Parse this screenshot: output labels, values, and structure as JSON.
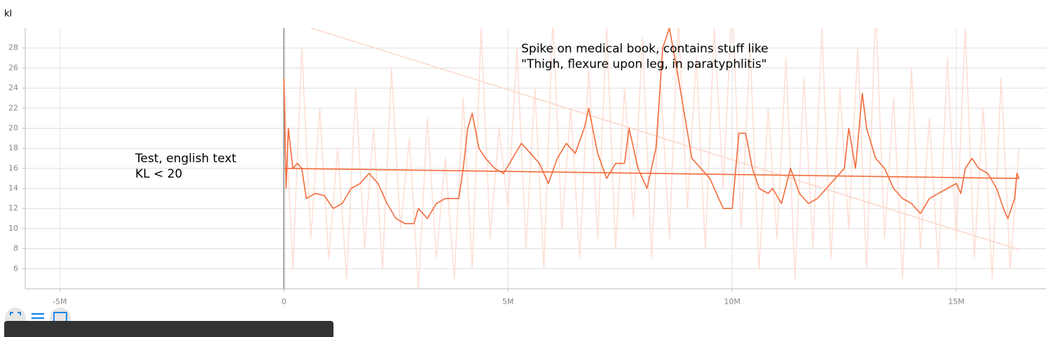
{
  "chart_data": {
    "type": "line",
    "ylabel": "kl",
    "xlim": [
      -5770000,
      17000000
    ],
    "ylim": [
      4,
      30
    ],
    "xticks": [
      {
        "value": -5000000,
        "label": "-5M"
      },
      0,
      {
        "value": 5000000,
        "label": "5M"
      },
      {
        "value": 10000000,
        "label": "10M"
      },
      {
        "value": 15000000,
        "label": "15M"
      }
    ],
    "yticks": [
      6,
      8,
      10,
      12,
      14,
      16,
      18,
      20,
      22,
      24,
      26,
      28
    ],
    "grid": true,
    "annotations": [
      [
        "Test, english text",
        "KL < 20"
      ],
      [
        "Spike on medical book, contains stuff like",
        "\"Thigh, flexure upon leg, in paratyphlitis\""
      ]
    ],
    "series": [
      {
        "color": "#fde0d6",
        "x": [
          0,
          200000,
          400000,
          600000,
          800000,
          1000000,
          1200000,
          1400000,
          1600000,
          1800000,
          2000000,
          2200000,
          2400000,
          2600000,
          2800000,
          3000000,
          3200000,
          3400000,
          3600000,
          3800000,
          4000000,
          4200000,
          4400000,
          4600000,
          4800000,
          5000000,
          5200000,
          5400000,
          5600000,
          5800000,
          6000000,
          6200000,
          6400000,
          6600000,
          6800000,
          7000000,
          7200000,
          7400000,
          7600000,
          7800000,
          8000000,
          8200000,
          8400000,
          8600000,
          8800000,
          9000000,
          9200000,
          9400000,
          9600000,
          9800000,
          10000000,
          10200000,
          10400000,
          10600000,
          10800000,
          11000000,
          11200000,
          11400000,
          11600000,
          11800000,
          12000000,
          12200000,
          12400000,
          12600000,
          12800000,
          13000000,
          13200000,
          13400000,
          13600000,
          13800000,
          14000000,
          14200000,
          14400000,
          14600000,
          14800000,
          15000000,
          15200000,
          15400000,
          15600000,
          15800000,
          16000000,
          16200000,
          16400000
        ],
        "values": [
          25,
          6,
          28,
          9,
          22,
          7,
          18,
          5,
          24,
          8,
          20,
          6,
          26,
          10,
          19,
          4,
          21,
          7,
          17,
          5,
          23,
          6,
          30,
          9,
          20,
          12,
          28,
          8,
          24,
          6,
          31,
          10,
          22,
          7,
          26,
          9,
          30,
          8,
          24,
          11,
          29,
          7,
          25,
          9,
          31,
          12,
          27,
          8,
          30,
          14,
          33,
          10,
          28,
          6,
          22,
          9,
          27,
          5,
          25,
          8,
          30,
          7,
          24,
          10,
          28,
          6,
          32,
          9,
          23,
          5,
          26,
          8,
          21,
          6,
          27,
          9,
          30,
          7,
          22,
          5,
          25,
          6,
          18
        ]
      },
      {
        "color": "#fcd8cb",
        "x": [
          600000,
          16400000
        ],
        "values": [
          30,
          7.9
        ]
      },
      {
        "color": "#f26b3a",
        "x": [
          0,
          16400000
        ],
        "values": [
          16,
          15
        ]
      },
      {
        "color": "#f26b3a",
        "x": [
          0,
          50000,
          100000,
          200000,
          300000,
          400000,
          500000,
          700000,
          900000,
          1100000,
          1300000,
          1500000,
          1700000,
          1900000,
          2100000,
          2300000,
          2500000,
          2700000,
          2900000,
          3000000,
          3200000,
          3400000,
          3600000,
          3800000,
          3900000,
          4000000,
          4100000,
          4200000,
          4350000,
          4500000,
          4700000,
          4900000,
          5100000,
          5300000,
          5500000,
          5700000,
          5900000,
          6100000,
          6300000,
          6500000,
          6700000,
          6800000,
          7000000,
          7200000,
          7400000,
          7600000,
          7700000,
          7900000,
          8100000,
          8300000,
          8450000,
          8600000,
          8800000,
          8950000,
          9100000,
          9300000,
          9500000,
          9600000,
          9800000,
          10000000,
          10150000,
          10300000,
          10450000,
          10600000,
          10800000,
          10900000,
          11100000,
          11300000,
          11500000,
          11700000,
          11900000,
          12100000,
          12300000,
          12500000,
          12600000,
          12750000,
          12900000,
          13000000,
          13200000,
          13400000,
          13600000,
          13800000,
          14000000,
          14200000,
          14400000,
          14600000,
          14800000,
          15000000,
          15100000,
          15200000,
          15350000,
          15500000,
          15700000,
          15900000,
          16050000,
          16150000,
          16300000,
          16350000,
          16400000
        ],
        "values": [
          25,
          14,
          20,
          16,
          16.5,
          16,
          13,
          13.5,
          13.3,
          12,
          12.5,
          14,
          14.5,
          15.5,
          14.5,
          12.5,
          11,
          10.5,
          10.5,
          12,
          11,
          12.5,
          13,
          13,
          13,
          16,
          20,
          21.5,
          18,
          17,
          16,
          15.5,
          17,
          18.5,
          17.5,
          16.5,
          14.5,
          17,
          18.5,
          17.5,
          20,
          22,
          17.5,
          15,
          16.5,
          16.5,
          20,
          16,
          14,
          18,
          28,
          30,
          25,
          21,
          17,
          16,
          15,
          14,
          12,
          12,
          19.5,
          19.5,
          16,
          14,
          13.5,
          14,
          12.5,
          16,
          13.5,
          12.5,
          13,
          14,
          15,
          16,
          20,
          16,
          23.5,
          20,
          17,
          16,
          14,
          13,
          12.5,
          11.5,
          13,
          13.5,
          14,
          14.5,
          13.5,
          16,
          17,
          16,
          15.5,
          14,
          12,
          11,
          13,
          15.5,
          15
        ]
      }
    ]
  }
}
